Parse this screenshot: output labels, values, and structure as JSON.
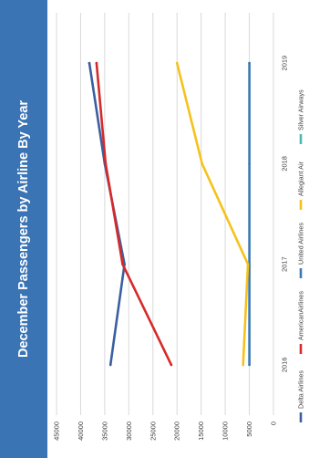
{
  "chart_data": {
    "type": "line",
    "title": "December Passengers by Airline By Year",
    "categories": [
      "2016",
      "2017",
      "2018",
      "2019"
    ],
    "ylim": [
      0,
      45000
    ],
    "yticks": [
      "0",
      "5000",
      "10000",
      "15000",
      "20000",
      "25000",
      "30000",
      "35000",
      "40000",
      "45000"
    ],
    "grid": true,
    "legend_position": "right",
    "series": [
      {
        "name": "Delta Airlines",
        "color": "#3a5fa0",
        "values": [
          33800,
          30900,
          35000,
          38200
        ]
      },
      {
        "name": "AmericanAirlines",
        "color": "#d62a2a",
        "values": [
          21200,
          31300,
          34800,
          36700
        ]
      },
      {
        "name": "United Airlines",
        "color": "#3a78b5",
        "values": [
          5000,
          5000,
          5000,
          5000
        ]
      },
      {
        "name": "Allegiant Air",
        "color": "#f5c21b",
        "values": [
          6300,
          5300,
          14800,
          20000
        ]
      },
      {
        "name": "Silver Airways",
        "color": "#4bb8b4",
        "values": [
          null,
          null,
          null,
          null
        ]
      }
    ]
  }
}
